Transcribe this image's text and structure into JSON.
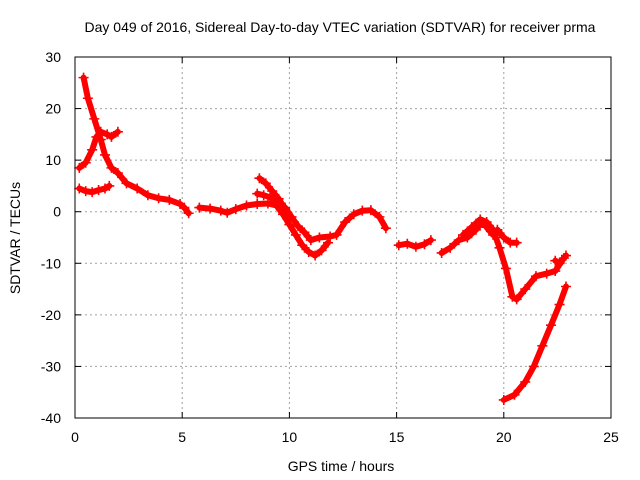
{
  "chart_data": {
    "type": "scatter",
    "title": "Day 049 of 2016, Sidereal Day-to-day VTEC variation (SDTVAR) for receiver prma",
    "xlabel": "GPS time / hours",
    "ylabel": "SDTVAR / TECUs",
    "xlim": [
      0,
      25
    ],
    "ylim": [
      -40,
      30
    ],
    "xticks": [
      0,
      5,
      10,
      15,
      20,
      25
    ],
    "yticks": [
      -40,
      -30,
      -20,
      -10,
      0,
      10,
      20,
      30
    ],
    "grid": true,
    "legend": "none",
    "marker": "plus",
    "color": "#ff0000",
    "series": [
      {
        "points": [
          [
            0.4,
            26
          ],
          [
            0.6,
            22
          ],
          [
            0.9,
            18
          ],
          [
            1.2,
            14
          ],
          [
            1.4,
            11
          ],
          [
            1.7,
            8.5
          ],
          [
            2.0,
            7.5
          ],
          [
            2.4,
            5.5
          ],
          [
            2.9,
            4.5
          ],
          [
            3.4,
            3.2
          ],
          [
            3.9,
            2.6
          ],
          [
            4.4,
            2.3
          ],
          [
            4.9,
            1.5
          ],
          [
            5.1,
            0.8
          ],
          [
            5.3,
            -0.3
          ]
        ]
      },
      {
        "points": [
          [
            0.2,
            8.5
          ],
          [
            0.5,
            9.5
          ],
          [
            0.8,
            12
          ],
          [
            1.0,
            14.5
          ],
          [
            1.2,
            15.5
          ],
          [
            1.5,
            15
          ],
          [
            1.7,
            14.5
          ],
          [
            2.0,
            15.5
          ]
        ]
      },
      {
        "points": [
          [
            0.2,
            4.5
          ],
          [
            0.5,
            4
          ],
          [
            0.8,
            3.8
          ],
          [
            1.1,
            4.2
          ],
          [
            1.4,
            4.5
          ],
          [
            1.6,
            5
          ]
        ]
      },
      {
        "points": [
          [
            5.8,
            0.8
          ],
          [
            6.3,
            0.6
          ],
          [
            6.8,
            0.2
          ],
          [
            7.1,
            -0.2
          ],
          [
            7.5,
            0.5
          ],
          [
            8.0,
            1.2
          ],
          [
            8.5,
            1.5
          ],
          [
            9.0,
            1.6
          ],
          [
            9.4,
            1.2
          ],
          [
            9.7,
            -0.5
          ],
          [
            10.0,
            -2.5
          ],
          [
            10.3,
            -4.5
          ],
          [
            10.6,
            -6.5
          ],
          [
            10.9,
            -7.8
          ],
          [
            11.2,
            -8.5
          ],
          [
            11.5,
            -7.5
          ],
          [
            11.8,
            -6
          ]
        ]
      },
      {
        "points": [
          [
            8.5,
            3.5
          ],
          [
            8.8,
            3.2
          ],
          [
            9.1,
            2.8
          ],
          [
            9.5,
            1.8
          ],
          [
            9.8,
            0.8
          ],
          [
            10.1,
            -1
          ],
          [
            10.4,
            -2.8
          ],
          [
            10.7,
            -4
          ],
          [
            11.0,
            -5.5
          ],
          [
            11.4,
            -5
          ],
          [
            11.9,
            -4.8
          ],
          [
            12.2,
            -4.5
          ],
          [
            12.6,
            -2
          ],
          [
            13.0,
            -0.5
          ],
          [
            13.4,
            0.2
          ],
          [
            13.8,
            0.3
          ],
          [
            14.2,
            -1
          ],
          [
            14.5,
            -3.2
          ]
        ]
      },
      {
        "points": [
          [
            8.6,
            6.5
          ],
          [
            8.9,
            5.5
          ],
          [
            9.2,
            4
          ],
          [
            9.5,
            2.5
          ],
          [
            9.8,
            0.5
          ],
          [
            10.0,
            -1.5
          ]
        ]
      },
      {
        "points": [
          [
            15.1,
            -6.5
          ],
          [
            15.5,
            -6.2
          ],
          [
            15.9,
            -6.8
          ],
          [
            16.3,
            -6.3
          ],
          [
            16.6,
            -5.5
          ]
        ]
      },
      {
        "points": [
          [
            17.1,
            -8
          ],
          [
            17.5,
            -7
          ],
          [
            17.9,
            -5.5
          ],
          [
            18.3,
            -5
          ],
          [
            18.7,
            -3.5
          ],
          [
            19.0,
            -2
          ],
          [
            19.2,
            -3
          ],
          [
            19.5,
            -4.5
          ],
          [
            19.7,
            -3.5
          ],
          [
            20.0,
            -5
          ],
          [
            20.3,
            -6
          ],
          [
            20.6,
            -6
          ]
        ]
      },
      {
        "points": [
          [
            18.1,
            -4.5
          ],
          [
            18.5,
            -3
          ],
          [
            18.9,
            -1.5
          ],
          [
            19.2,
            -2
          ],
          [
            19.5,
            -3.5
          ],
          [
            19.8,
            -7
          ],
          [
            20.1,
            -11
          ],
          [
            20.4,
            -16.5
          ],
          [
            20.6,
            -17
          ],
          [
            21.0,
            -15
          ],
          [
            21.5,
            -12.5
          ],
          [
            22.0,
            -12
          ],
          [
            22.4,
            -11.5
          ],
          [
            22.8,
            -9
          ]
        ]
      },
      {
        "points": [
          [
            22.4,
            -9.5
          ],
          [
            22.6,
            -10
          ],
          [
            22.9,
            -8.5
          ]
        ]
      },
      {
        "points": [
          [
            20.0,
            -36.5
          ],
          [
            20.5,
            -35.5
          ],
          [
            21.0,
            -33
          ],
          [
            21.4,
            -30
          ],
          [
            21.8,
            -26
          ],
          [
            22.2,
            -22
          ],
          [
            22.6,
            -18
          ],
          [
            22.9,
            -14.5
          ]
        ]
      }
    ]
  }
}
